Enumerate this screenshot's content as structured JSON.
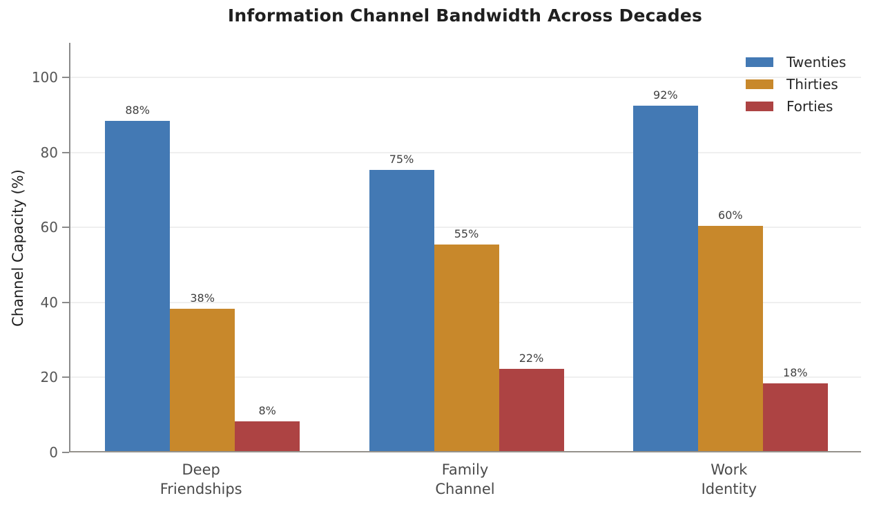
{
  "chart_data": {
    "type": "bar",
    "title": "Information Channel Bandwidth Across Decades",
    "ylabel": "Channel Capacity (%)",
    "xlabel": "",
    "categories": [
      {
        "lines": [
          "Deep",
          "Friendships"
        ]
      },
      {
        "lines": [
          "Family",
          "Channel"
        ]
      },
      {
        "lines": [
          "Work",
          "Identity"
        ]
      }
    ],
    "series": [
      {
        "name": "Twenties",
        "color": "#4379B4",
        "values": [
          88,
          75,
          92
        ]
      },
      {
        "name": "Thirties",
        "color": "#C8882B",
        "values": [
          38,
          55,
          60
        ]
      },
      {
        "name": "Forties",
        "color": "#AD4343",
        "values": [
          8,
          22,
          18
        ]
      }
    ],
    "value_label_suffix": "%",
    "yticks": [
      0,
      20,
      40,
      60,
      80,
      100
    ],
    "ylim": [
      0,
      109
    ],
    "grid": "horizontal",
    "legend_position": "upper right",
    "colors": {
      "grid": "#efefef",
      "spine": "#8a8a8a",
      "tick_label": "#555555",
      "title": "#1f1f1f",
      "value_label": "#3f3f3f"
    }
  }
}
